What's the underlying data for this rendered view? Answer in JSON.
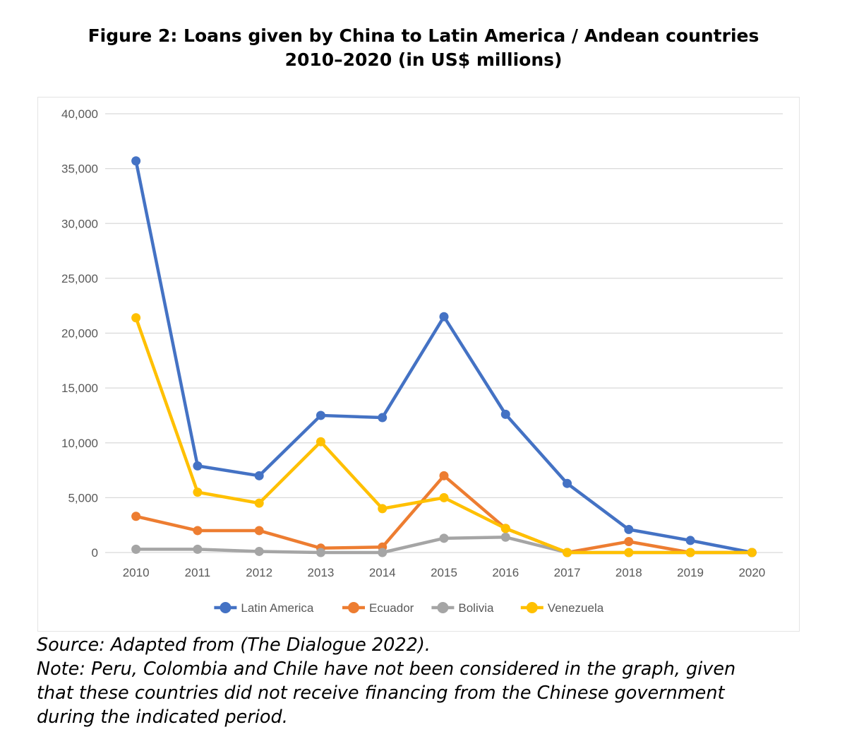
{
  "figure": {
    "title_line1": "Figure 2: Loans given by China to Latin America / Andean countries",
    "title_line2": "2010–2020 (in US$ millions)",
    "source": "Source: Adapted from (The Dialogue 2022).",
    "note_line1": "Note: Peru, Colombia and Chile have not been considered in the graph, given",
    "note_line2": "that these countries did not receive financing from the Chinese government",
    "note_line3": "during the indicated period."
  },
  "chart_data": {
    "type": "line",
    "x": [
      "2010",
      "2011",
      "2012",
      "2013",
      "2014",
      "2015",
      "2016",
      "2017",
      "2018",
      "2019",
      "2020"
    ],
    "ylim": [
      0,
      40000
    ],
    "yticks": [
      0,
      5000,
      10000,
      15000,
      20000,
      25000,
      30000,
      35000,
      40000
    ],
    "ytick_labels": [
      "0",
      "5,000",
      "10,000",
      "15,000",
      "20,000",
      "25,000",
      "30,000",
      "35,000",
      "40,000"
    ],
    "grid": true,
    "legend_position": "bottom",
    "series": [
      {
        "name": "Latin America",
        "color": "#4472C4",
        "values": [
          35700,
          7900,
          7000,
          12500,
          12300,
          21500,
          12600,
          6300,
          2100,
          1100,
          0
        ]
      },
      {
        "name": "Ecuador",
        "color": "#ED7D31",
        "values": [
          3300,
          2000,
          2000,
          400,
          500,
          7000,
          2200,
          0,
          1000,
          0,
          0
        ]
      },
      {
        "name": "Bolivia",
        "color": "#A5A5A5",
        "values": [
          300,
          300,
          100,
          0,
          0,
          1300,
          1400,
          0,
          0,
          0,
          0
        ]
      },
      {
        "name": "Venezuela",
        "color": "#FFC000",
        "values": [
          21400,
          5500,
          4500,
          10100,
          4000,
          5000,
          2200,
          0,
          0,
          0,
          0
        ]
      }
    ]
  }
}
